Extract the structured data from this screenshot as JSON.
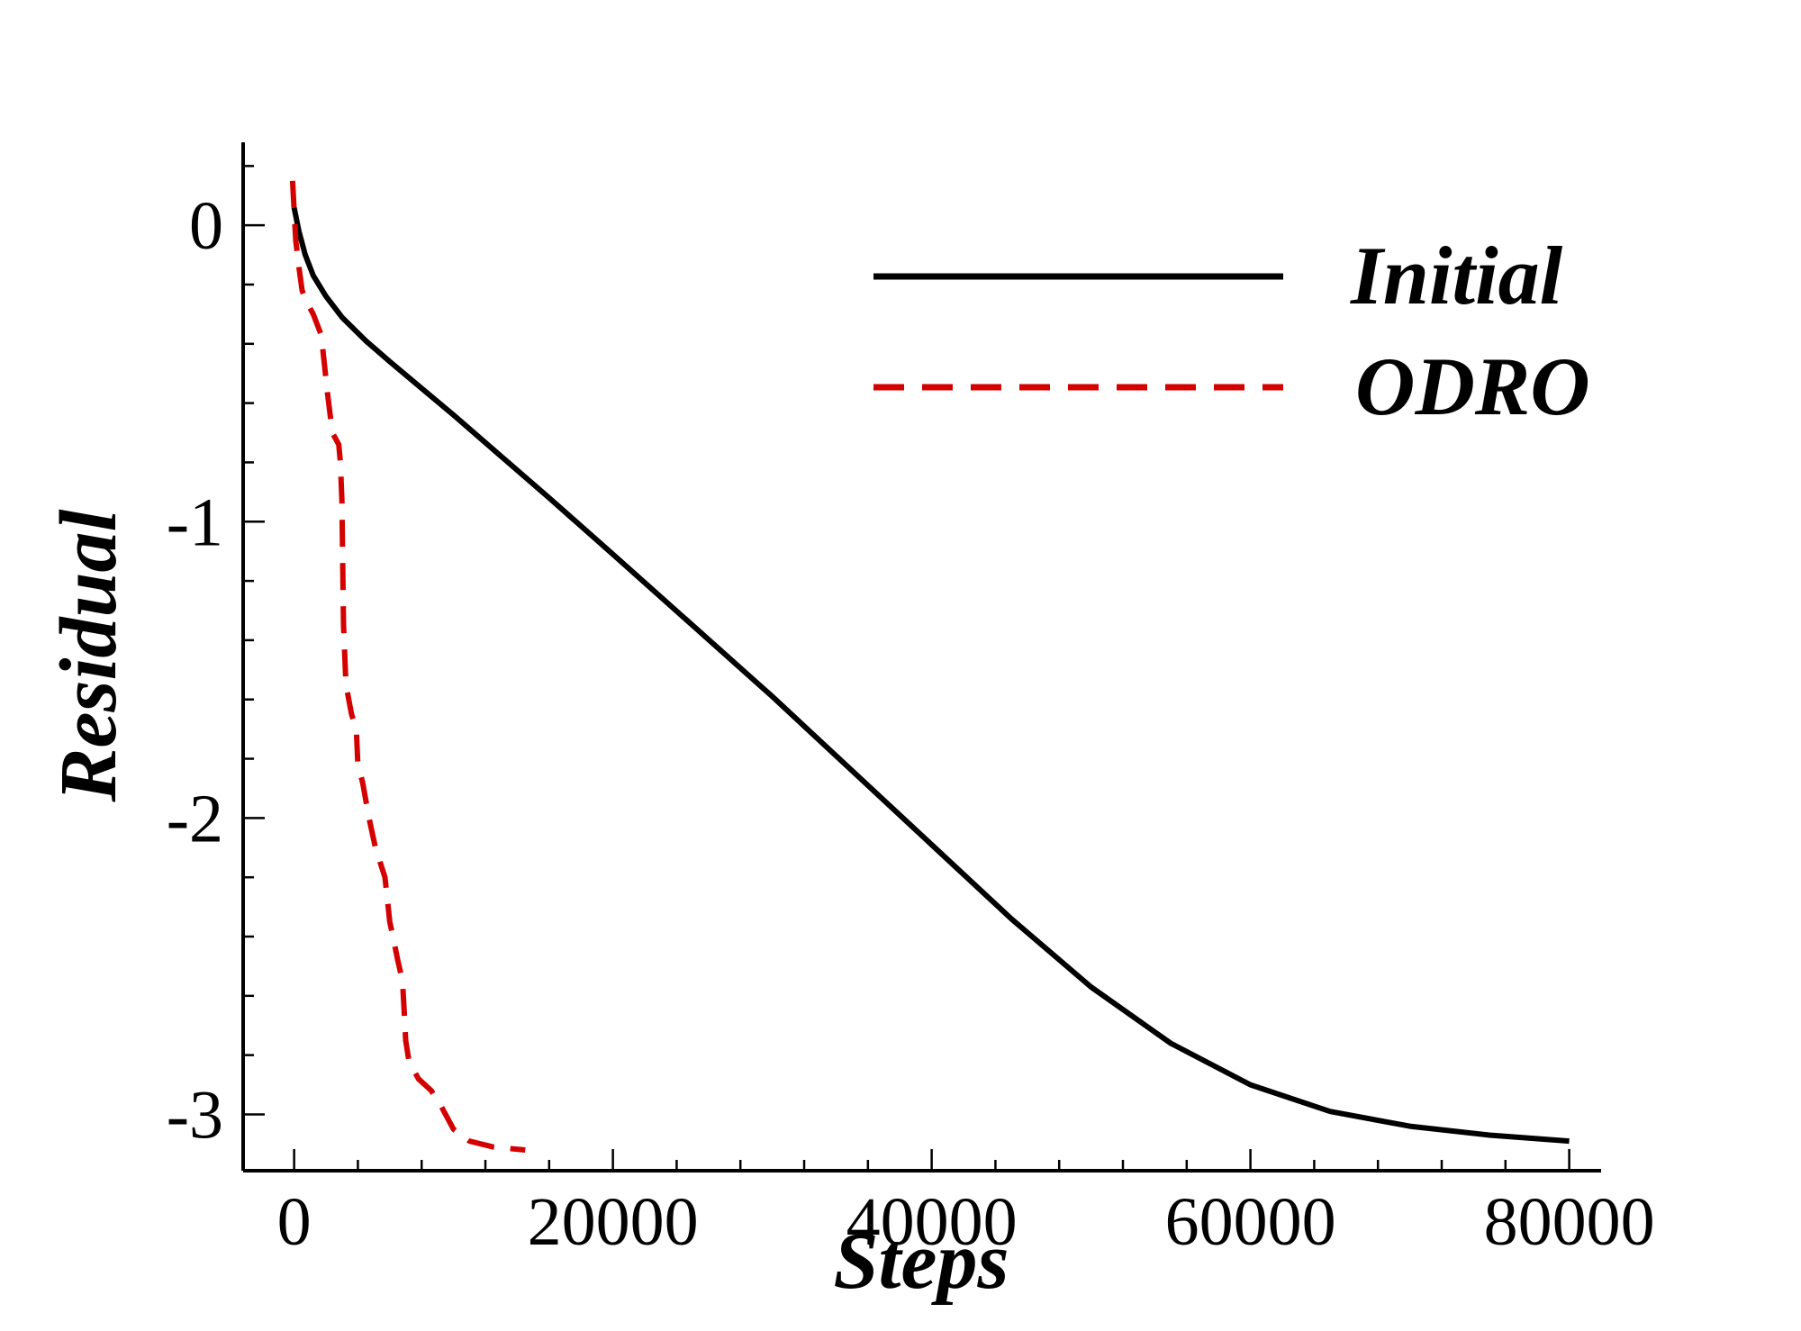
{
  "chart_data": {
    "type": "line",
    "title": "",
    "xlabel": "Steps",
    "ylabel": "Residual",
    "xlim": [
      -3200,
      82000
    ],
    "ylim": [
      -3.19,
      0.28
    ],
    "x_ticks": [
      0,
      20000,
      40000,
      60000,
      80000
    ],
    "x_tick_labels": [
      "0",
      "20000",
      "40000",
      "60000",
      "80000"
    ],
    "x_minor_step": 4000,
    "y_ticks": [
      0,
      -1,
      -2,
      -3
    ],
    "y_tick_labels": [
      "0",
      "-1",
      "-2",
      "-3"
    ],
    "y_minor_step": 0.2,
    "grid": false,
    "legend_position": "top-right",
    "series": [
      {
        "name": "Initial",
        "color": "#000000",
        "style": "solid",
        "x": [
          0,
          300,
          700,
          1200,
          2000,
          3000,
          4500,
          6000,
          8000,
          10000,
          13000,
          16000,
          20000,
          25000,
          30000,
          35000,
          40000,
          45000,
          50000,
          55000,
          60000,
          65000,
          70000,
          75000,
          80000
        ],
        "y": [
          0.06,
          -0.02,
          -0.1,
          -0.17,
          -0.24,
          -0.31,
          -0.39,
          -0.46,
          -0.55,
          -0.64,
          -0.78,
          -0.92,
          -1.11,
          -1.35,
          -1.59,
          -1.84,
          -2.09,
          -2.34,
          -2.57,
          -2.76,
          -2.9,
          -2.99,
          -3.04,
          -3.07,
          -3.09
        ]
      },
      {
        "name": "ODRO",
        "color": "#d40000",
        "style": "dashed",
        "x": [
          -100,
          100,
          300,
          500,
          800,
          1200,
          1700,
          1900,
          2100,
          2400,
          2800,
          2900,
          3000,
          3050,
          3100,
          3250,
          3600,
          3900,
          4000,
          4300,
          4700,
          5100,
          5700,
          5900,
          6000,
          6200,
          6500,
          6800,
          6900,
          7000,
          7200,
          7800,
          8600,
          9200,
          9500,
          10000,
          11000,
          12500,
          14500
        ],
        "y": [
          0.15,
          -0.05,
          -0.14,
          -0.22,
          -0.26,
          -0.3,
          -0.37,
          -0.47,
          -0.57,
          -0.7,
          -0.74,
          -0.8,
          -0.93,
          -1.15,
          -1.35,
          -1.55,
          -1.65,
          -1.7,
          -1.82,
          -1.88,
          -2.0,
          -2.1,
          -2.2,
          -2.3,
          -2.35,
          -2.4,
          -2.48,
          -2.55,
          -2.65,
          -2.75,
          -2.82,
          -2.88,
          -2.92,
          -2.97,
          -3.0,
          -3.05,
          -3.09,
          -3.11,
          -3.12
        ]
      }
    ]
  }
}
